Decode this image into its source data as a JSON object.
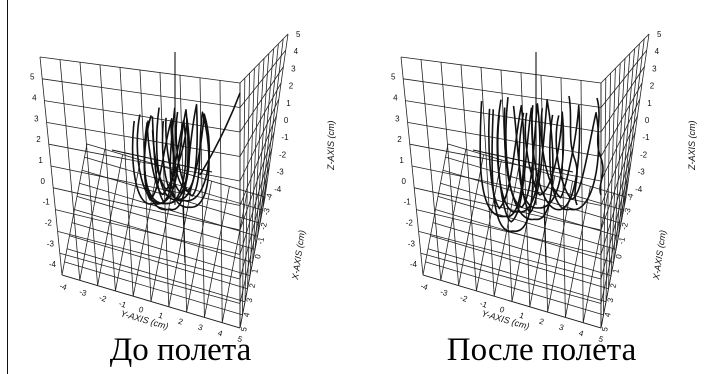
{
  "chart_data": [
    {
      "type": "3d-line",
      "caption": "До полета",
      "xlabel": "X-AXIS (cm)",
      "ylabel": "Y-AXIS (cm)",
      "zlabel": "Z-AXIS (cm)",
      "x_ticks": [
        "-4",
        "-3",
        "-2",
        "-1",
        "0",
        "1",
        "2",
        "3",
        "4",
        "5"
      ],
      "y_ticks": [
        "-4",
        "-3",
        "-2",
        "-1",
        "0",
        "1",
        "2",
        "3",
        "4",
        "5"
      ],
      "z_ticks": [
        "5",
        "4",
        "3",
        "2",
        "1",
        "0",
        "-1",
        "-2",
        "-3",
        "-4"
      ],
      "z_ticks_left": [
        "5",
        "4",
        "3",
        "2",
        "1",
        "0",
        "-1",
        "-2",
        "-3",
        "-4"
      ],
      "xlim": [
        -4,
        5
      ],
      "ylim": [
        -4,
        5
      ],
      "zlim": [
        -4,
        5
      ],
      "grid": true
    },
    {
      "type": "3d-line",
      "caption": "После полета",
      "xlabel": "X-AXIS (cm)",
      "ylabel": "Y-AXIS (cm)",
      "zlabel": "Z-AXIS (cm)",
      "x_ticks": [
        "-4",
        "-3",
        "-2",
        "-1",
        "0",
        "1",
        "2",
        "3",
        "4",
        "5"
      ],
      "y_ticks": [
        "-4",
        "-3",
        "-2",
        "-1",
        "0",
        "1",
        "2",
        "3",
        "4",
        "5"
      ],
      "z_ticks": [
        "5",
        "4",
        "3",
        "2",
        "1",
        "0",
        "-1",
        "-2",
        "-3",
        "-4"
      ],
      "z_ticks_left": [
        "5",
        "4",
        "3",
        "2",
        "1",
        "0",
        "-1",
        "-2",
        "-3",
        "-4"
      ],
      "xlim": [
        -4,
        5
      ],
      "ylim": [
        -4,
        5
      ],
      "zlim": [
        -4,
        5
      ],
      "grid": true
    }
  ]
}
